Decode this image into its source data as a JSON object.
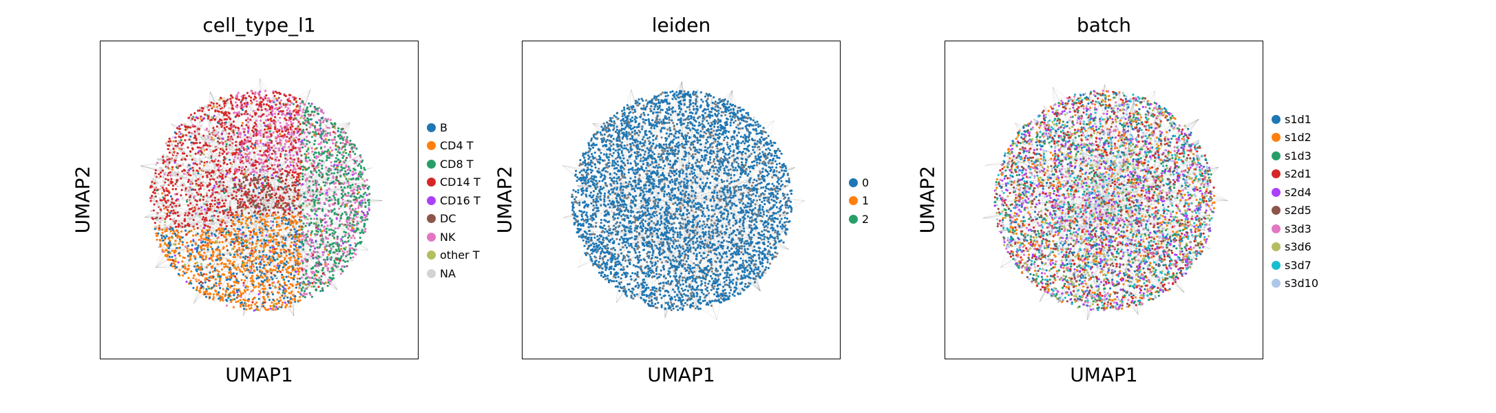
{
  "chart_data": [
    {
      "type": "scatter",
      "title": "cell_type_l1",
      "xlabel": "UMAP1",
      "ylabel": "UMAP2",
      "grid": false,
      "legend_position": "right",
      "categories": [
        "B",
        "CD4 T",
        "CD8 T",
        "CD14 T",
        "CD16 T",
        "DC",
        "NK",
        "other T",
        "NA"
      ],
      "colors": [
        "#1f77b4",
        "#ff7f0e",
        "#279e68",
        "#d62728",
        "#aa40fc",
        "#8c564b",
        "#e377c2",
        "#b5bd61",
        "#d3d3d3"
      ],
      "edges_color": "#808080"
    },
    {
      "type": "scatter",
      "title": "leiden",
      "xlabel": "UMAP1",
      "ylabel": "UMAP2",
      "grid": false,
      "legend_position": "right",
      "categories": [
        "0",
        "1",
        "2"
      ],
      "colors": [
        "#1f77b4",
        "#ff7f0e",
        "#279e68"
      ],
      "edges_color": "#808080"
    },
    {
      "type": "scatter",
      "title": "batch",
      "xlabel": "UMAP1",
      "ylabel": "UMAP2",
      "grid": false,
      "legend_position": "right",
      "categories": [
        "s1d1",
        "s1d2",
        "s1d3",
        "s2d1",
        "s2d4",
        "s2d5",
        "s3d3",
        "s3d6",
        "s3d7",
        "s3d10"
      ],
      "colors": [
        "#1f77b4",
        "#ff7f0e",
        "#279e68",
        "#d62728",
        "#aa40fc",
        "#8c564b",
        "#e377c2",
        "#b5bd61",
        "#17becf",
        "#aec7e8"
      ],
      "edges_color": "#808080"
    }
  ]
}
